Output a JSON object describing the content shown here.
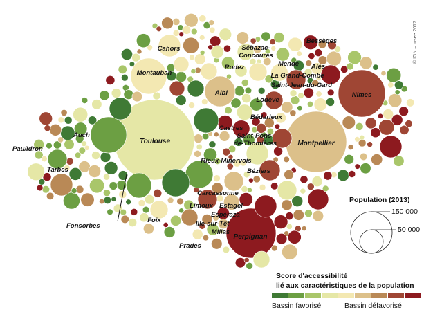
{
  "credit": "© IGN – Insee 2017",
  "palette": {
    "c1": "#3f7a35",
    "c2": "#6c9f43",
    "c3": "#a9c66a",
    "c4": "#e5e7a6",
    "c5": "#f3e8b2",
    "c6": "#dcc08a",
    "c7": "#b98956",
    "c8": "#9f4634",
    "c9": "#8d1a1f"
  },
  "cities": [
    {
      "id": "toulouse",
      "name": "Toulouse"
    },
    {
      "id": "montpellier",
      "name": "Montpellier"
    },
    {
      "id": "nimes",
      "name": "Nîmes"
    },
    {
      "id": "perpignan",
      "name": "Perpignan"
    },
    {
      "id": "beziers",
      "name": "Béziers"
    },
    {
      "id": "pau",
      "name": "Pau/Idron"
    },
    {
      "id": "tarbes",
      "name": "Tarbes"
    },
    {
      "id": "auch",
      "name": "Auch"
    },
    {
      "id": "montauban",
      "name": "Montauban"
    },
    {
      "id": "cahors",
      "name": "Cahors"
    },
    {
      "id": "albi",
      "name": "Albi"
    },
    {
      "id": "rodez",
      "name": "Rodez"
    },
    {
      "id": "sebazac",
      "name": "Sébazac-\nConcourès"
    },
    {
      "id": "mende",
      "name": "Mende"
    },
    {
      "id": "besseges",
      "name": "Bessèges"
    },
    {
      "id": "ales",
      "name": "Alès"
    },
    {
      "id": "grandcombe",
      "name": "La Grand-Combe"
    },
    {
      "id": "saintjean",
      "name": "Saint-Jean-du-Gard"
    },
    {
      "id": "lodeve",
      "name": "Lodève"
    },
    {
      "id": "bedarieux",
      "name": "Bédarieux"
    },
    {
      "id": "castres",
      "name": "Castres"
    },
    {
      "id": "saintpons",
      "name": "Saint-Pons-\nde-Thomières"
    },
    {
      "id": "rieux",
      "name": "Rieux-Minervois"
    },
    {
      "id": "carcassonne",
      "name": "Carcassonne"
    },
    {
      "id": "limoux",
      "name": "Limoux"
    },
    {
      "id": "estagel",
      "name": "Estagel"
    },
    {
      "id": "esperaza",
      "name": "Espéraza"
    },
    {
      "id": "ille",
      "name": "Ille-sur-Têt"
    },
    {
      "id": "millas",
      "name": "Millas"
    },
    {
      "id": "prades",
      "name": "Prades"
    },
    {
      "id": "foix",
      "name": "Foix"
    },
    {
      "id": "fonsorbes",
      "name": "Fonsorbes"
    }
  ],
  "population_legend": {
    "title": "Population (2013)",
    "values": [
      "150 000",
      "50 000"
    ]
  },
  "score_legend": {
    "title_line1": "Score d'accessibilité",
    "title_line2": "lié aux caractéristiques de la population",
    "low_label": "Bassin favorisé",
    "high_label": "Bassin défavorisé",
    "colors": [
      "#3f7a35",
      "#6c9f43",
      "#a9c66a",
      "#e5e7a6",
      "#f3e8b2",
      "#dcc08a",
      "#b98956",
      "#9f4634",
      "#8d1a1f"
    ]
  }
}
